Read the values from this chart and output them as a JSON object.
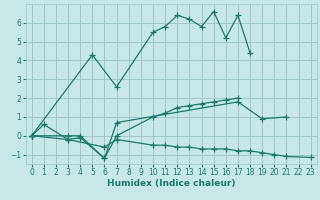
{
  "title": "",
  "xlabel": "Humidex (Indice chaleur)",
  "series": [
    {
      "points": [
        [
          0,
          0.0
        ],
        [
          1,
          0.6
        ],
        [
          3,
          -0.2
        ],
        [
          4,
          -0.1
        ],
        [
          6,
          -1.2
        ],
        [
          7,
          0.7
        ],
        [
          17,
          1.8
        ],
        [
          19,
          0.9
        ],
        [
          21,
          1.0
        ]
      ]
    },
    {
      "points": [
        [
          0,
          0.0
        ],
        [
          3,
          0.0
        ],
        [
          4,
          0.0
        ],
        [
          6,
          -1.2
        ],
        [
          7,
          0.0
        ],
        [
          10,
          1.0
        ],
        [
          11,
          1.2
        ],
        [
          12,
          1.5
        ],
        [
          13,
          1.6
        ],
        [
          14,
          1.7
        ],
        [
          15,
          1.8
        ],
        [
          16,
          1.9
        ],
        [
          17,
          2.0
        ]
      ]
    },
    {
      "points": [
        [
          0,
          0.0
        ],
        [
          3,
          -0.2
        ],
        [
          6,
          -0.6
        ],
        [
          7,
          -0.2
        ],
        [
          10,
          -0.5
        ],
        [
          11,
          -0.5
        ],
        [
          12,
          -0.6
        ],
        [
          13,
          -0.6
        ],
        [
          14,
          -0.7
        ],
        [
          15,
          -0.7
        ],
        [
          16,
          -0.7
        ],
        [
          17,
          -0.8
        ],
        [
          18,
          -0.8
        ],
        [
          19,
          -0.9
        ],
        [
          20,
          -1.0
        ],
        [
          21,
          -1.1
        ],
        [
          23,
          -1.15
        ]
      ]
    },
    {
      "points": [
        [
          0,
          0.0
        ],
        [
          5,
          4.3
        ],
        [
          7,
          2.6
        ],
        [
          10,
          5.5
        ],
        [
          11,
          5.8
        ],
        [
          12,
          6.4
        ],
        [
          13,
          6.2
        ],
        [
          14,
          5.8
        ],
        [
          15,
          6.6
        ],
        [
          16,
          5.2
        ],
        [
          17,
          6.4
        ],
        [
          18,
          4.4
        ]
      ]
    }
  ],
  "line_color": "#1a7a6a",
  "bg_color": "#c8e8e8",
  "grid_color": "#a0c8c8",
  "ylim": [
    -1.5,
    7.0
  ],
  "xlim": [
    -0.5,
    23.5
  ],
  "yticks": [
    -1,
    0,
    1,
    2,
    3,
    4,
    5,
    6
  ],
  "xticks": [
    0,
    1,
    2,
    3,
    4,
    5,
    6,
    7,
    8,
    9,
    10,
    11,
    12,
    13,
    14,
    15,
    16,
    17,
    18,
    19,
    20,
    21,
    22,
    23
  ]
}
